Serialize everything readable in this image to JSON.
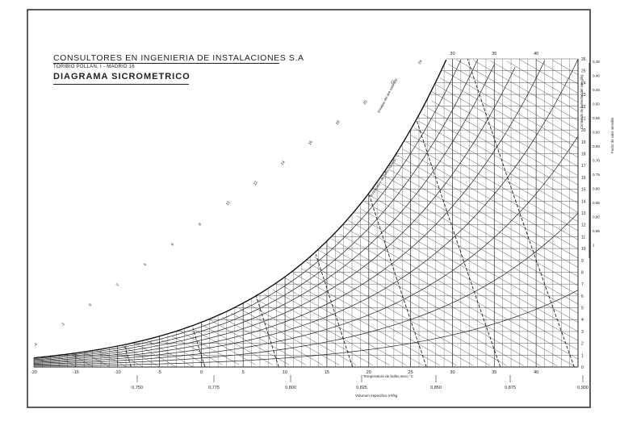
{
  "header": {
    "company": "CONSULTORES EN INGENIERIA DE INSTALACIONES S.A",
    "address": "TORIBIO POLLAN, I - MADRID 16",
    "title": "DIAGRAMA SICROMETRICO"
  },
  "axes": {
    "dry_bulb_label": "Temperatura de bulbo seco °C",
    "specific_volume_label": "Volumen especifico m³/kg",
    "humidity_label": "Contenido de humedad del aire g/kg",
    "enthalpy_label": "Entalpia del aire saturado",
    "wet_bulb_label": "Temperatura de bulbo humedo °C",
    "shf_label": "Factor de calor sensible",
    "dry_bulb_ticks": [
      "-20",
      "-15",
      "-10",
      "-5",
      "0",
      "5",
      "10",
      "15",
      "20",
      "25",
      "30",
      "35",
      "40"
    ],
    "top_ticks": [
      "30",
      "35",
      "40"
    ],
    "humidity_ticks": [
      "0",
      "1",
      "2",
      "3",
      "4",
      "5",
      "6",
      "7",
      "8",
      "9",
      "10",
      "11",
      "12",
      "13",
      "14",
      "15",
      "16",
      "17",
      "18",
      "19",
      "20",
      "21",
      "22",
      "23",
      "24",
      "25",
      "26"
    ],
    "volume_ticks": [
      "0,750",
      "0,775",
      "0,800",
      "0,825",
      "0,850",
      "0,875",
      "0,900"
    ],
    "shf_ticks": [
      "0,35",
      "0,40",
      "0,45",
      "0,50",
      "0,55",
      "0,60",
      "0,65",
      "0,70",
      "0,75",
      "0,80",
      "0,85",
      "0,90",
      "0,95",
      "1"
    ],
    "enthalpy_ticks": [
      "-4",
      "-2",
      "0",
      "2",
      "4",
      "6",
      "8",
      "10",
      "12",
      "14",
      "16",
      "18",
      "20",
      "22",
      "24"
    ]
  }
}
